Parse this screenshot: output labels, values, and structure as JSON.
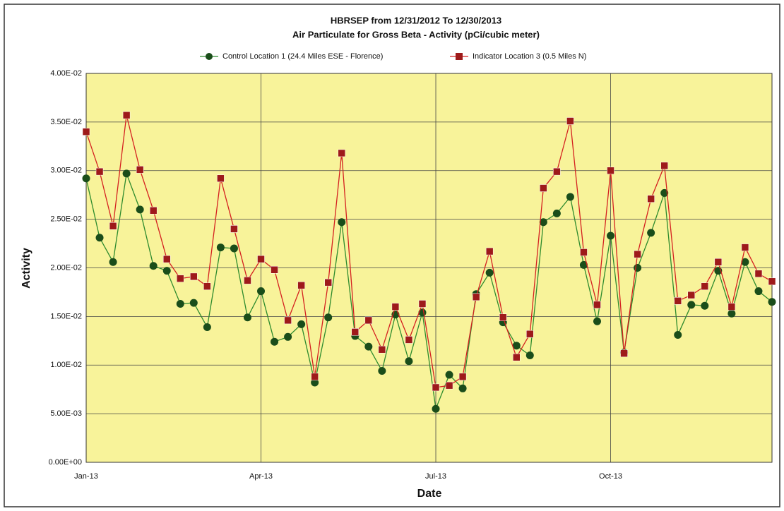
{
  "chart_data": {
    "type": "line",
    "title": "HBRSEP from 12/31/2012 To 12/30/2013",
    "subtitle": "Air Particulate for Gross Beta - Activity (pCi/cubic meter)",
    "x_label": "Date",
    "y_label": "Activity",
    "categories": [
      "Jan-13",
      null,
      null,
      null,
      null,
      null,
      null,
      null,
      null,
      null,
      null,
      null,
      null,
      "Apr-13",
      null,
      null,
      null,
      null,
      null,
      null,
      null,
      null,
      null,
      null,
      null,
      null,
      "Jul-13",
      null,
      null,
      null,
      null,
      null,
      null,
      null,
      null,
      null,
      null,
      null,
      null,
      "Oct-13",
      null,
      null,
      null,
      null,
      null,
      null,
      null,
      null,
      null,
      null,
      null,
      null
    ],
    "series": [
      {
        "name": "Control Location 1 (24.4 Miles ESE - Florence)",
        "color": "#2e8b2e",
        "marker_color": "#1a4d1a",
        "marker": "circle",
        "values": [
          0.0292,
          0.0231,
          0.0206,
          0.0297,
          0.026,
          0.0202,
          0.0197,
          0.0163,
          0.0164,
          0.0139,
          0.0221,
          0.022,
          0.0149,
          0.0176,
          0.0124,
          0.0129,
          0.0142,
          0.0082,
          0.0149,
          0.0247,
          0.013,
          0.0119,
          0.0094,
          0.0152,
          0.0104,
          0.0154,
          0.0055,
          0.009,
          0.0076,
          0.0173,
          0.0195,
          0.0144,
          0.012,
          0.011,
          0.0247,
          0.0256,
          0.0273,
          0.0203,
          0.0145,
          0.0233,
          0.0113,
          0.02,
          0.0236,
          0.0277,
          0.0131,
          0.0162,
          0.0161,
          0.0197,
          0.0153,
          0.0206,
          0.0176,
          0.0165
        ]
      },
      {
        "name": "Indicator Location 3 (0.5 Miles N)",
        "color": "#d42020",
        "marker_color": "#9e1a1a",
        "marker": "square",
        "values": [
          0.034,
          0.0299,
          0.0243,
          0.0357,
          0.0301,
          0.0259,
          0.0209,
          0.0189,
          0.0191,
          0.0181,
          0.0292,
          0.024,
          0.0187,
          0.0209,
          0.0198,
          0.0146,
          0.0182,
          0.0088,
          0.0185,
          0.0318,
          0.0134,
          0.0146,
          0.0116,
          0.016,
          0.0126,
          0.0163,
          0.0077,
          0.0079,
          0.0088,
          0.017,
          0.0217,
          0.0149,
          0.0108,
          0.0132,
          0.0282,
          0.0299,
          0.0351,
          0.0216,
          0.0162,
          0.03,
          0.0112,
          0.0214,
          0.0271,
          0.0305,
          0.0166,
          0.0172,
          0.0181,
          0.0206,
          0.016,
          0.0221,
          0.0194,
          0.0186
        ]
      }
    ],
    "ylim": [
      0,
      0.04
    ],
    "yticks": [
      {
        "value": 0,
        "label": "0.00E+00"
      },
      {
        "value": 0.005,
        "label": "5.00E-03"
      },
      {
        "value": 0.01,
        "label": "1.00E-02"
      },
      {
        "value": 0.015,
        "label": "1.50E-02"
      },
      {
        "value": 0.02,
        "label": "2.00E-02"
      },
      {
        "value": 0.025,
        "label": "2.50E-02"
      },
      {
        "value": 0.03,
        "label": "3.00E-02"
      },
      {
        "value": 0.035,
        "label": "3.50E-02"
      },
      {
        "value": 0.04,
        "label": "4.00E-02"
      }
    ],
    "grid": true,
    "legend": "top",
    "plot_background": "#f8f39a"
  }
}
